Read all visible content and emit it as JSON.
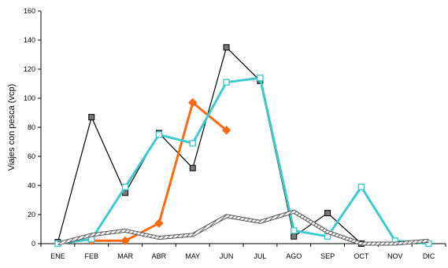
{
  "chart_data": {
    "type": "line",
    "title": "",
    "xlabel": "",
    "ylabel": "Viajes con pesca (vcp)",
    "ylim": [
      0,
      160
    ],
    "yticks": [
      0,
      20,
      40,
      60,
      80,
      100,
      120,
      140,
      160
    ],
    "grid": false,
    "legend": "none",
    "categories": [
      "ENE",
      "FEB",
      "MAR",
      "ABR",
      "MAY",
      "JUN",
      "JUL",
      "AGO",
      "SEP",
      "OCT",
      "NOV",
      "DIC"
    ],
    "series": [
      {
        "color": "#000000",
        "line": "thin",
        "marker": "filled-square-grey",
        "values": [
          1,
          87,
          35,
          76,
          52,
          135,
          112,
          5,
          21,
          0,
          null,
          null
        ]
      },
      {
        "color": "#ff6a13",
        "line": "thick",
        "marker": "diamond",
        "values": [
          null,
          2,
          2,
          14,
          97,
          78,
          null,
          null,
          null,
          null,
          null,
          null
        ]
      },
      {
        "color": "#3ec9cc",
        "line": "thick",
        "marker": "open-square",
        "values": [
          0,
          3,
          39,
          75,
          69,
          111,
          114,
          9,
          5,
          39,
          2,
          0
        ]
      },
      {
        "color": "#8a8a8a",
        "line": "hatched",
        "marker": "none",
        "values": [
          0,
          6,
          9,
          4,
          6,
          19,
          15,
          22,
          8,
          0,
          0,
          2
        ]
      }
    ]
  }
}
